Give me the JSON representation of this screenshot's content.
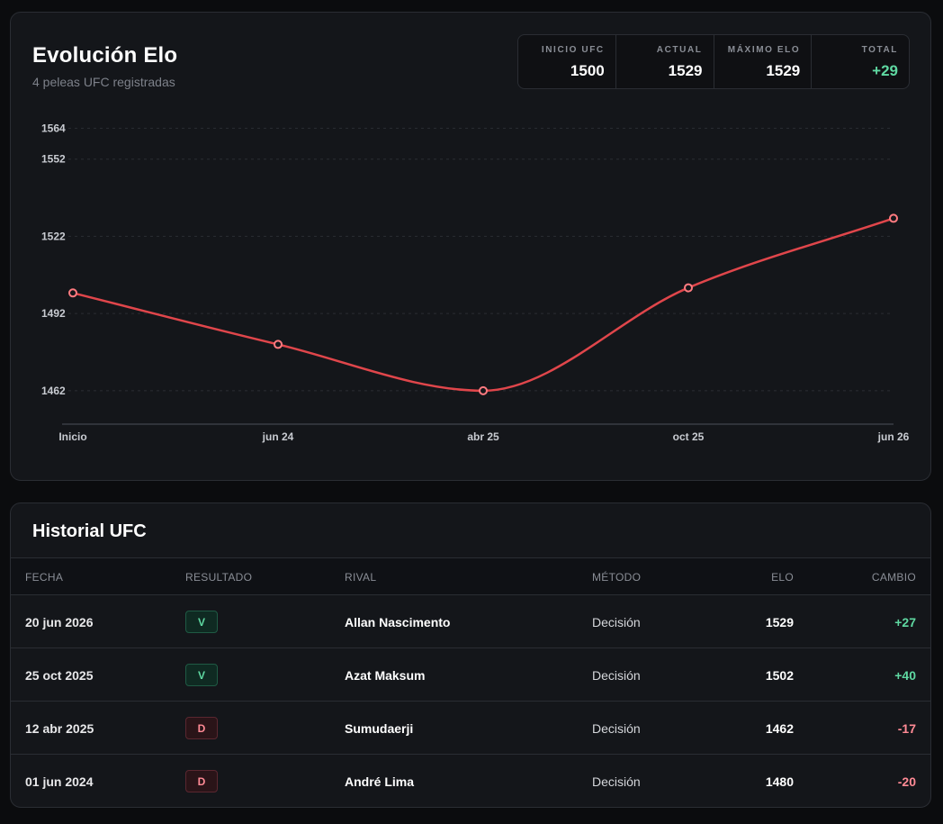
{
  "elo_card": {
    "title": "Evolución Elo",
    "subtitle": "4 peleas UFC registradas",
    "stats": [
      {
        "label": "INICIO UFC",
        "value": "1500"
      },
      {
        "label": "ACTUAL",
        "value": "1529"
      },
      {
        "label": "MÁXIMO ELO",
        "value": "1529"
      },
      {
        "label": "TOTAL",
        "value": "+29"
      }
    ]
  },
  "colors": {
    "line": "#e0464b",
    "positive": "#5fd9a2",
    "negative": "#ff8a95",
    "card_bg": "#14161a",
    "page_bg": "#0b0c0e"
  },
  "chart_data": {
    "type": "line",
    "categories": [
      "Inicio",
      "jun 24",
      "abr 25",
      "oct 25",
      "jun 26"
    ],
    "x_positions": [
      0,
      1,
      2,
      3,
      4
    ],
    "series": [
      {
        "values": [
          1500,
          1480,
          1462,
          1502,
          1529
        ]
      }
    ],
    "ticks": [
      1564,
      1552,
      1522,
      1492,
      1462
    ],
    "ylim": [
      1456,
      1568
    ],
    "grid": true,
    "title": "",
    "xlabel": "",
    "ylabel": ""
  },
  "history": {
    "title": "Historial UFC",
    "columns": {
      "date": "FECHA",
      "result": "RESULTADO",
      "rival": "RIVAL",
      "method": "MÉTODO",
      "elo": "ELO",
      "change": "CAMBIO"
    },
    "rows": [
      {
        "date": "20 jun 2026",
        "result": "V",
        "rival": "Allan Nascimento",
        "method": "Decisión",
        "elo": "1529",
        "change": "+27"
      },
      {
        "date": "25 oct 2025",
        "result": "V",
        "rival": "Azat Maksum",
        "method": "Decisión",
        "elo": "1502",
        "change": "+40"
      },
      {
        "date": "12 abr 2025",
        "result": "D",
        "rival": "Sumudaerji",
        "method": "Decisión",
        "elo": "1462",
        "change": "-17"
      },
      {
        "date": "01 jun 2024",
        "result": "D",
        "rival": "André Lima",
        "method": "Decisión",
        "elo": "1480",
        "change": "-20"
      }
    ]
  }
}
